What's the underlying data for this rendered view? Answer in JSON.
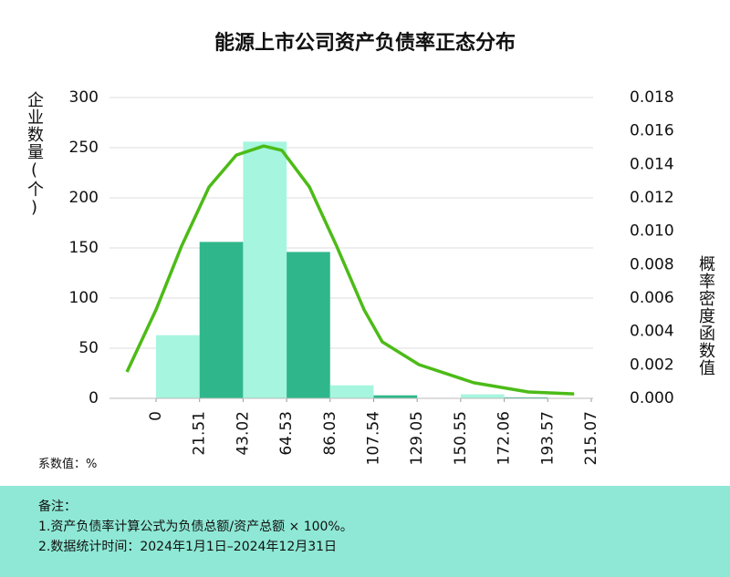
{
  "chart_data": {
    "type": "histogram",
    "title": "能源上市公司资产负债率正态分布",
    "ylabel": "企业数量(个)",
    "y2label": "概率密度函数值",
    "xlabel": "系数值：%",
    "bins": [
      0,
      21.51,
      43.02,
      64.53,
      86.03,
      107.54,
      129.05,
      150.55,
      172.06,
      193.57,
      215.07
    ],
    "counts": [
      63,
      156,
      256,
      146,
      13,
      3,
      0,
      4,
      1,
      0
    ],
    "colors": [
      "#a6f5df",
      "#2fb78b",
      "#a6f5df",
      "#2fb78b",
      "#a6f5df",
      "#2fb78b",
      "#a6f5df",
      "#a6f5df",
      "#2fb78b",
      "#a6f5df"
    ],
    "xlim": [
      -23,
      216
    ],
    "ylim": [
      0,
      300
    ],
    "yticks": [
      0,
      50,
      100,
      150,
      200,
      250,
      300
    ],
    "y2lim": [
      0,
      0.018
    ],
    "y2ticks": [
      {
        "value": 0,
        "label": "0.000"
      },
      {
        "value": 0.002,
        "label": "0.002"
      },
      {
        "value": 0.004,
        "label": "0.004"
      },
      {
        "value": 0.006,
        "label": "0.006"
      },
      {
        "value": 0.008,
        "label": "0.008"
      },
      {
        "value": 0.01,
        "label": "0.010"
      },
      {
        "value": 0.012,
        "label": "0.012"
      },
      {
        "value": 0.014,
        "label": "0.014"
      },
      {
        "value": 0.016,
        "label": "0.016"
      },
      {
        "value": 0.018,
        "label": "0.018"
      }
    ],
    "grid": true,
    "curve": {
      "axis": "y2",
      "color": "#4cbb17",
      "x": [
        -14.4,
        0,
        12.6,
        26.2,
        39.7,
        53.2,
        62.2,
        75.8,
        89.3,
        102.8,
        111.8,
        129.9,
        157,
        184,
        206.6
      ],
      "values": [
        0.00158,
        0.0053,
        0.0091,
        0.01265,
        0.01456,
        0.0151,
        0.01484,
        0.01265,
        0.0091,
        0.0053,
        0.00338,
        0.00202,
        0.00093,
        0.00038,
        0.00027
      ]
    }
  },
  "notes": {
    "title": "备注：",
    "items": [
      "1.资产负债率计算公式为负债总额/资产总额 × 100%。",
      "2.数据统计时间：2024年1月1日–2024年12月31日"
    ]
  }
}
